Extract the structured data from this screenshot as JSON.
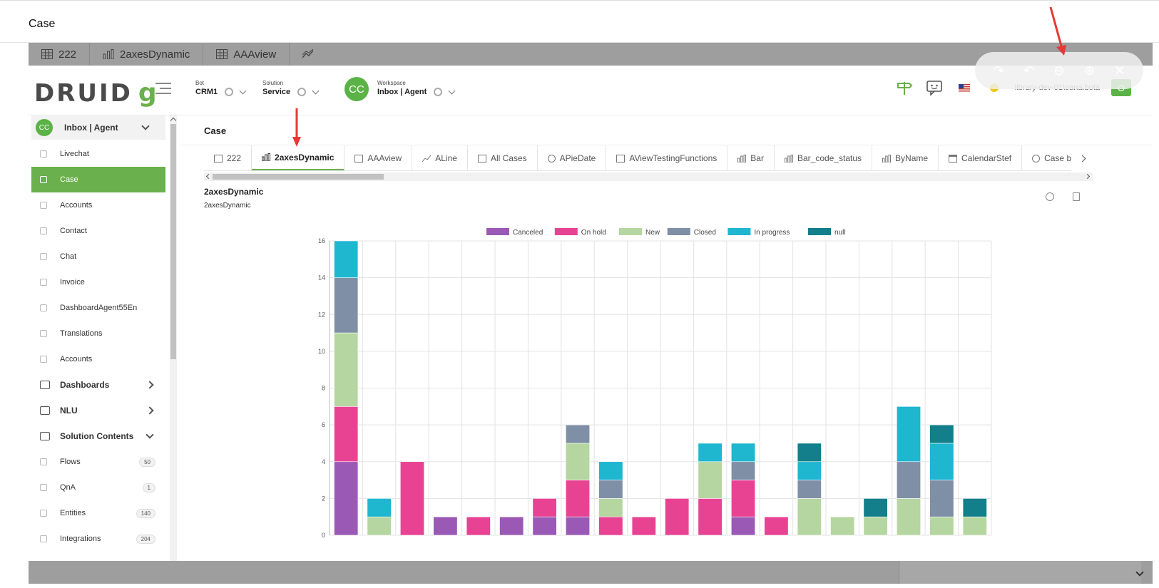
{
  "page_title": "Case",
  "outer_tabs": [
    {
      "label": "222",
      "icon": "table-icon"
    },
    {
      "label": "2axesDynamic",
      "icon": "bar-chart-icon"
    },
    {
      "label": "AAAview",
      "icon": "table-icon"
    },
    {
      "label": "",
      "icon": "line-chart-icon"
    }
  ],
  "header": {
    "logo_text": "DRUID",
    "bot": {
      "label": "Bot",
      "value": "CRM1"
    },
    "solution": {
      "label": "Solution",
      "value": "Service"
    },
    "workspace": {
      "avatar": "CC",
      "label": "Workspace",
      "value": "Inbox | Agent"
    },
    "username": "library-dev-01\\oana.bota",
    "user_btn": "O"
  },
  "sidebar": {
    "agent": {
      "avatar": "CC",
      "label": "Inbox | Agent"
    },
    "items": [
      {
        "label": "Livechat",
        "active": false
      },
      {
        "label": "Case",
        "active": true
      },
      {
        "label": "Accounts",
        "active": false
      },
      {
        "label": "Contact",
        "active": false
      },
      {
        "label": "Chat",
        "active": false
      },
      {
        "label": "Invoice",
        "active": false
      },
      {
        "label": "DashboardAgent55En",
        "active": false
      },
      {
        "label": "Translations",
        "active": false
      },
      {
        "label": "Accounts",
        "active": false
      }
    ],
    "groups": [
      {
        "label": "Dashboards",
        "expanded": false
      },
      {
        "label": "NLU",
        "expanded": false
      },
      {
        "label": "Solution Contents",
        "expanded": true
      }
    ],
    "contents": [
      {
        "label": "Flows",
        "count": "50"
      },
      {
        "label": "QnA",
        "count": "1"
      },
      {
        "label": "Entities",
        "count": "140"
      },
      {
        "label": "Integrations",
        "count": "204"
      }
    ]
  },
  "main": {
    "title": "Case",
    "tabs": [
      {
        "label": "222",
        "icon": "table-icon",
        "active": false
      },
      {
        "label": "2axesDynamic",
        "icon": "bar-chart-icon",
        "active": true
      },
      {
        "label": "AAAview",
        "icon": "table-icon",
        "active": false
      },
      {
        "label": "ALine",
        "icon": "line-chart-icon",
        "active": false
      },
      {
        "label": "All Cases",
        "icon": "table-icon",
        "active": false
      },
      {
        "label": "APieDate",
        "icon": "pie-chart-icon",
        "active": false
      },
      {
        "label": "AViewTestingFunctions",
        "icon": "table-icon",
        "active": false
      },
      {
        "label": "Bar",
        "icon": "bar-chart-icon",
        "active": false
      },
      {
        "label": "Bar_code_status",
        "icon": "bar-chart-icon",
        "active": false
      },
      {
        "label": "ByName",
        "icon": "bar-chart-icon",
        "active": false
      },
      {
        "label": "CalendarStef",
        "icon": "calendar-icon",
        "active": false
      },
      {
        "label": "Case by",
        "icon": "pie-chart-icon",
        "active": false
      }
    ],
    "chart_title": "2axesDynamic",
    "chart_subtitle": "2axesDynamic"
  },
  "colors": {
    "brand_green": "#6ab04c",
    "canceled": "#9b59b6",
    "on_hold": "#e84393",
    "new": "#b5d6a0",
    "closed": "#7f8fa6",
    "in_progress": "#1fb6d0",
    "null": "#127f8a"
  },
  "chart_data": {
    "type": "bar",
    "stacked": true,
    "legend_position": "top",
    "grid": true,
    "ylim": [
      0,
      16
    ],
    "yticks": [
      0,
      2,
      4,
      6,
      8,
      10,
      12,
      14,
      16
    ],
    "series": [
      {
        "name": "Canceled",
        "color": "#9b59b6",
        "values": [
          4,
          0,
          0,
          1,
          0,
          1,
          1,
          1,
          0,
          0,
          0,
          0,
          1,
          0,
          0,
          0,
          0,
          0,
          0,
          0
        ]
      },
      {
        "name": "On hold",
        "color": "#e84393",
        "values": [
          3,
          0,
          4,
          0,
          1,
          0,
          1,
          2,
          1,
          1,
          2,
          2,
          2,
          1,
          0,
          0,
          0,
          0,
          0,
          0
        ]
      },
      {
        "name": "New",
        "color": "#b5d6a0",
        "values": [
          4,
          1,
          0,
          0,
          0,
          0,
          0,
          2,
          1,
          0,
          0,
          2,
          0,
          0,
          2,
          1,
          1,
          2,
          1,
          1
        ]
      },
      {
        "name": "Closed",
        "color": "#7f8fa6",
        "values": [
          3,
          0,
          0,
          0,
          0,
          0,
          0,
          1,
          1,
          0,
          0,
          0,
          1,
          0,
          1,
          0,
          0,
          2,
          2,
          0
        ]
      },
      {
        "name": "In progress",
        "color": "#1fb6d0",
        "values": [
          2,
          1,
          0,
          0,
          0,
          0,
          0,
          0,
          1,
          0,
          0,
          1,
          1,
          0,
          1,
          0,
          0,
          3,
          2,
          0
        ]
      },
      {
        "name": "null",
        "color": "#127f8a",
        "values": [
          0,
          0,
          0,
          0,
          0,
          0,
          0,
          0,
          0,
          0,
          0,
          0,
          0,
          0,
          1,
          0,
          1,
          0,
          1,
          1
        ]
      }
    ]
  }
}
